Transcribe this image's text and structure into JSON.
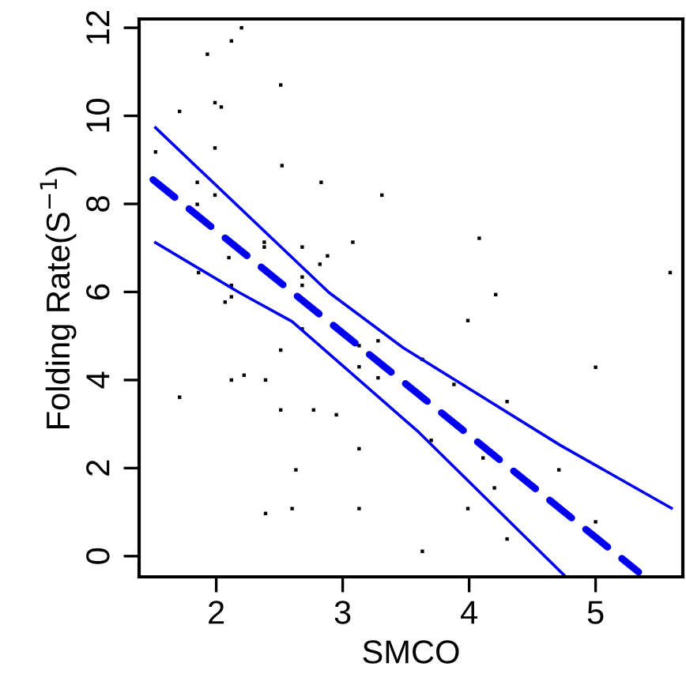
{
  "chart_data": {
    "type": "scatter",
    "xlabel": "SMCO",
    "ylabel": "Folding Rate(S$^{−1}$)",
    "xlim": [
      1.39,
      5.69
    ],
    "ylim": [
      -0.47,
      12.2
    ],
    "xticks": [
      2,
      3,
      4,
      5
    ],
    "yticks": [
      0,
      2,
      4,
      6,
      8,
      10,
      12
    ],
    "grid": false,
    "series": [
      {
        "color": "#000000",
        "marker": "square",
        "x": [
          2.2,
          2.12,
          1.93,
          2.51,
          1.99,
          2.04,
          1.71,
          1.99,
          1.52,
          2.52,
          1.85,
          2.83,
          3.31,
          1.99,
          1.85,
          3.08,
          2.38,
          2.38,
          2.68,
          2.88,
          2.1,
          2.82,
          1.86,
          2.68,
          2.68,
          2.12,
          2.12,
          2.07,
          2.68,
          3.13,
          3.28,
          2.51,
          3.13,
          3.28,
          2.12,
          2.22,
          2.39,
          1.71,
          2.51,
          2.77,
          2.95,
          3.13,
          2.63,
          2.6,
          3.13,
          2.39,
          4.08,
          5.59,
          4.21,
          3.99,
          3.63,
          5.0,
          3.88,
          4.3,
          3.7,
          4.11,
          4.71,
          4.2,
          3.99,
          5.0,
          4.3,
          3.63
        ],
        "values": [
          12.0,
          11.7,
          11.4,
          10.7,
          10.3,
          10.2,
          10.1,
          9.27,
          9.18,
          8.87,
          8.49,
          8.49,
          8.2,
          8.2,
          7.99,
          7.13,
          7.13,
          7.02,
          7.02,
          6.82,
          6.78,
          6.63,
          6.44,
          6.34,
          6.15,
          6.15,
          5.89,
          5.77,
          5.16,
          4.78,
          4.89,
          4.68,
          4.3,
          4.05,
          4.0,
          4.11,
          4.0,
          3.61,
          3.32,
          3.32,
          3.21,
          2.44,
          1.96,
          1.08,
          1.08,
          0.97,
          7.22,
          6.44,
          5.94,
          5.35,
          4.47,
          4.29,
          3.9,
          3.51,
          2.63,
          2.23,
          1.96,
          1.55,
          1.08,
          0.78,
          0.39,
          0.11
        ]
      },
      {
        "type": "line",
        "color": "#0000ee",
        "line_style": "dashed",
        "x": [
          1.5,
          5.34
        ],
        "values": [
          8.55,
          -0.36
        ]
      },
      {
        "type": "line",
        "color": "#0000ee",
        "line_style": "solid",
        "x": [
          1.52,
          2.89,
          3.48,
          4.72,
          5.6
        ],
        "values": [
          9.73,
          5.99,
          4.73,
          2.52,
          1.09
        ]
      },
      {
        "type": "line",
        "color": "#0000ee",
        "line_style": "solid",
        "x": [
          1.52,
          2.18,
          2.6,
          3.6,
          4.75
        ],
        "values": [
          7.12,
          5.99,
          5.33,
          2.82,
          -0.43
        ]
      }
    ]
  }
}
